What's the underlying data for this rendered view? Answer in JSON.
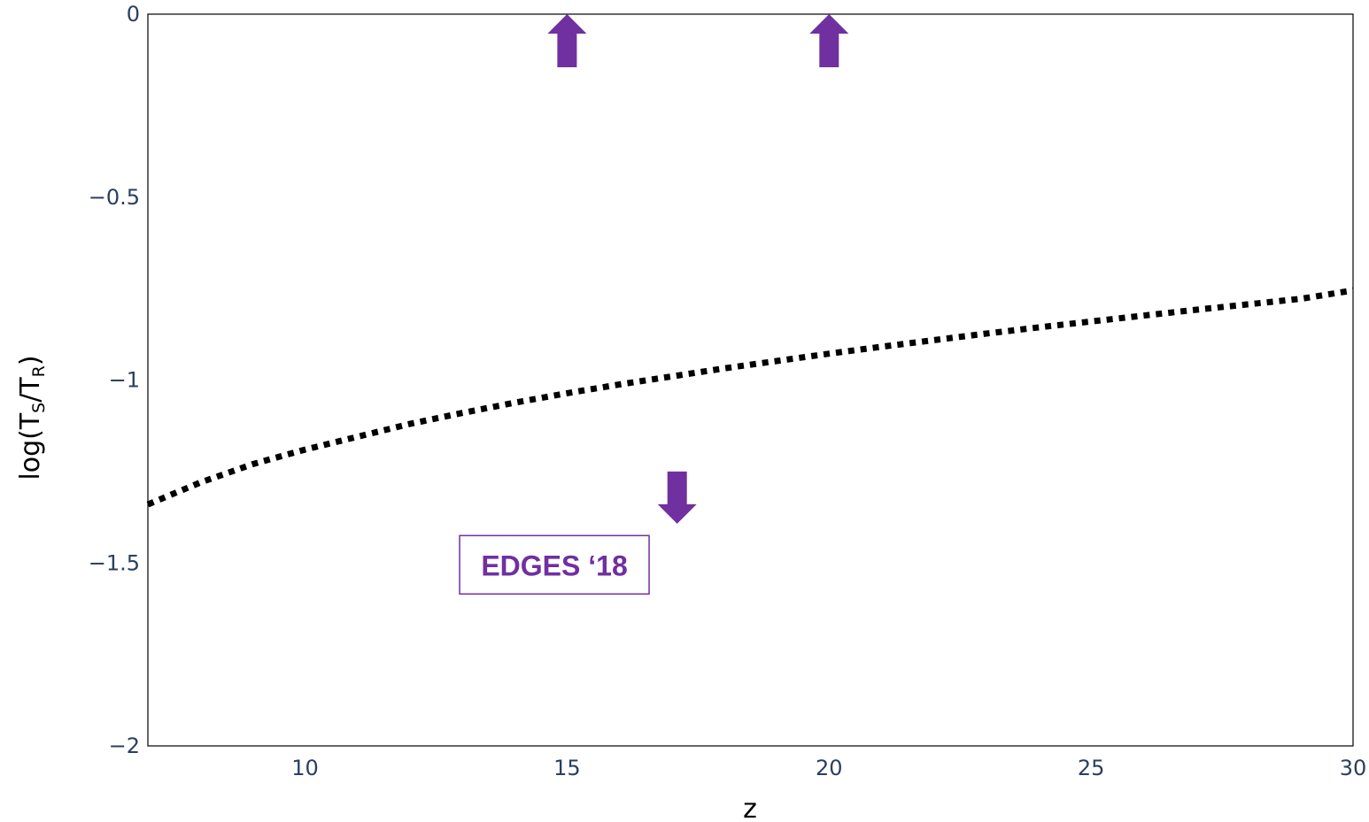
{
  "chart_data": {
    "type": "line",
    "xlabel": "z",
    "ylabel": {
      "prefix": "log(T",
      "sub1": "S",
      "mid": "/T",
      "sub2": "R",
      "suffix": ")"
    },
    "xlim": [
      7,
      30
    ],
    "ylim": [
      -2,
      0
    ],
    "x_ticks": [
      10,
      15,
      20,
      25,
      30
    ],
    "x_tick_labels": [
      "10",
      "15",
      "20",
      "25",
      "30"
    ],
    "y_ticks": [
      0,
      -0.5,
      -1,
      -1.5,
      -2
    ],
    "y_tick_labels": [
      "0",
      "−0.5",
      "−1",
      "−1.5",
      "−2"
    ],
    "grid": false,
    "series": [
      {
        "line_style": "dotted",
        "color": "#000000",
        "x": [
          7,
          8,
          9,
          10,
          11,
          12,
          13,
          14,
          15,
          16,
          17,
          18,
          19,
          20,
          21,
          22,
          23,
          24,
          25,
          26,
          27,
          28,
          29,
          30
        ],
        "y": [
          -1.34,
          -1.28,
          -1.23,
          -1.19,
          -1.155,
          -1.12,
          -1.09,
          -1.062,
          -1.036,
          -1.012,
          -0.99,
          -0.968,
          -0.948,
          -0.928,
          -0.909,
          -0.891,
          -0.873,
          -0.856,
          -0.84,
          -0.824,
          -0.808,
          -0.793,
          -0.778,
          -0.755
        ]
      }
    ],
    "markers": [
      {
        "kind": "arrow-up",
        "x": 15,
        "y": 0,
        "color": "#7030a0"
      },
      {
        "kind": "arrow-up",
        "x": 20,
        "y": 0,
        "color": "#7030a0"
      },
      {
        "kind": "arrow-down",
        "x": 17.1,
        "y": -1.25,
        "color": "#7030a0"
      }
    ],
    "annotations": [
      {
        "text": "EDGES ‘18",
        "x": 13,
        "y": -1.43,
        "color": "#7030a0"
      }
    ]
  }
}
